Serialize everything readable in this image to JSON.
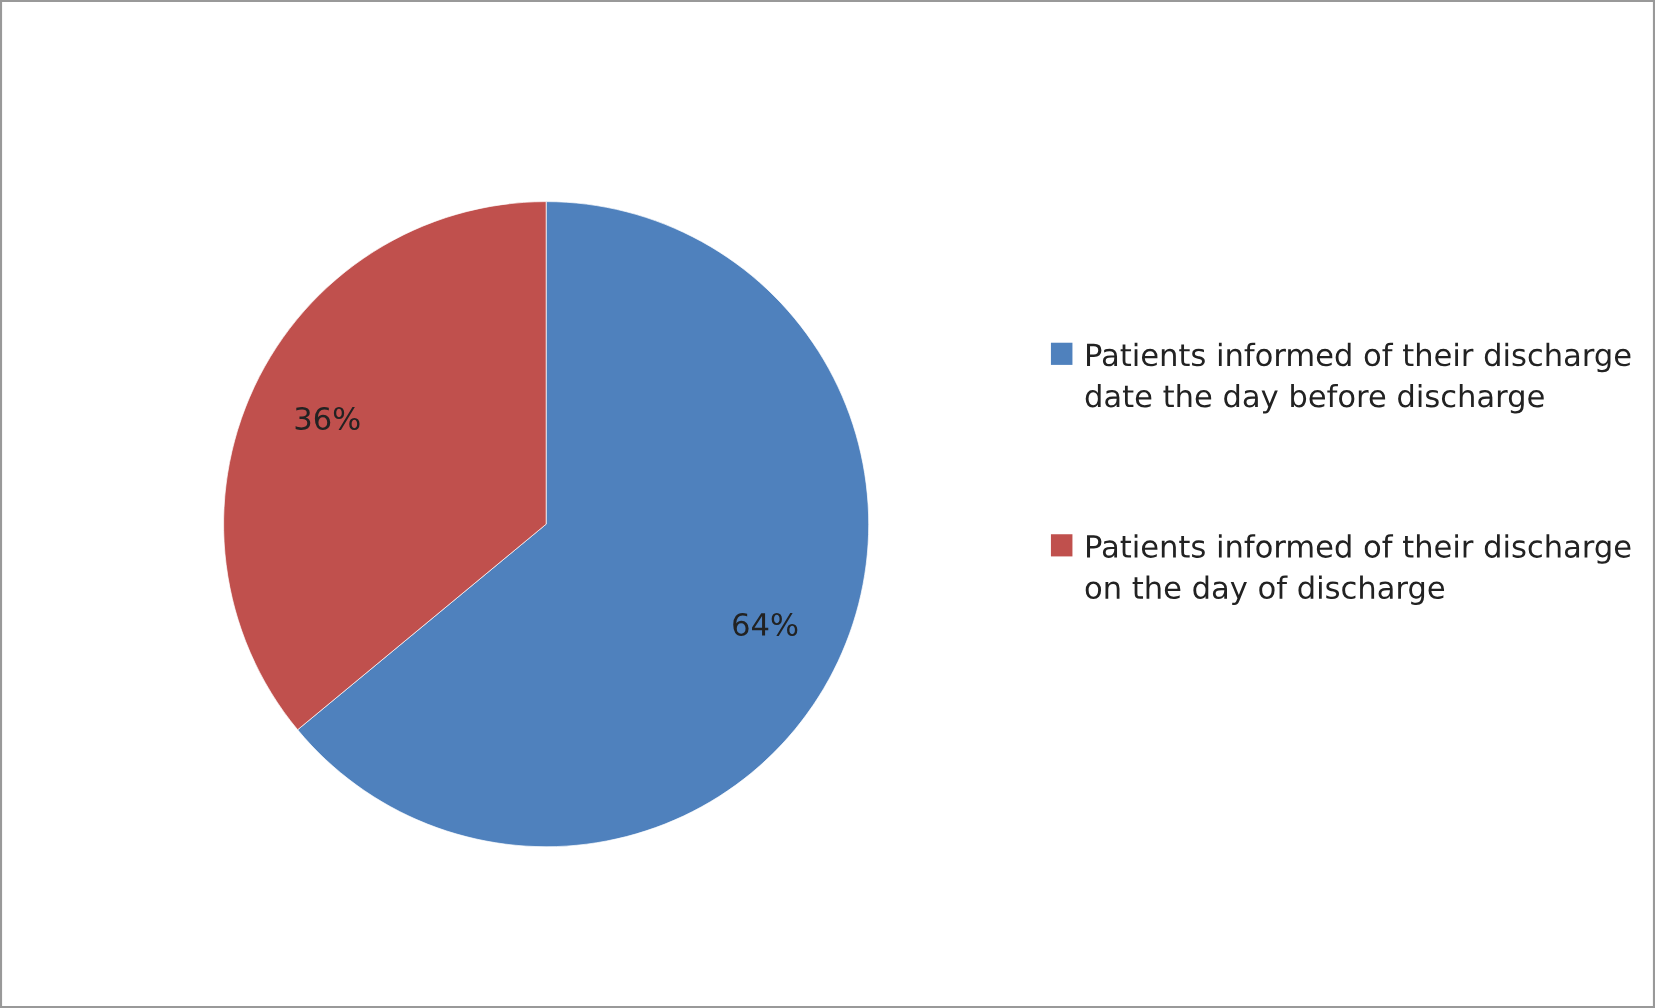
{
  "chart_data": {
    "type": "pie",
    "categories": [
      "Patients informed of their discharge date the day before discharge",
      "Patients informed of their discharge on the day of discharge"
    ],
    "values": [
      64,
      36
    ],
    "colors": [
      "#4f81bd",
      "#c0504d"
    ],
    "value_labels": [
      "64%",
      "36%"
    ],
    "legend": "right"
  }
}
